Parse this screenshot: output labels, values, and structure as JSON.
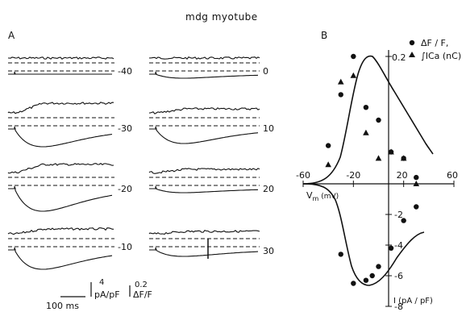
{
  "title": "mdg  myotube",
  "panel_a": {
    "label": "A",
    "rows": [
      {
        "left_voltage": "-40",
        "right_voltage": "0"
      },
      {
        "left_voltage": "-30",
        "right_voltage": "10"
      },
      {
        "left_voltage": "-20",
        "right_voltage": "20"
      },
      {
        "left_voltage": "-10",
        "right_voltage": "30"
      }
    ],
    "scale_bar": {
      "time_label": "100  ms",
      "current_value": "4",
      "current_unit": "pA/pF",
      "fluor_value": "0.2",
      "fluor_unit": "ΔF/F"
    }
  },
  "panel_b": {
    "label": "B",
    "legend": [
      {
        "marker": "circle",
        "label": "ΔF / F,"
      },
      {
        "marker": "triangle",
        "label": "∫ICa (nC)"
      }
    ],
    "x_axis_label": "V",
    "x_axis_sub": "m",
    "x_axis_unit": " (mV)",
    "y_axis_label_bottom": "I (pA / pF)",
    "y_top_tick_label": "0.2"
  },
  "chart_data": {
    "type": "scatter",
    "xlabel": "Vm (mV)",
    "ylabel": "I (pA / pF)",
    "xlim": [
      -60,
      60
    ],
    "ylim": [
      -8,
      0
    ],
    "x_ticks": [
      -60,
      -20,
      20,
      60
    ],
    "y_ticks": [
      -8,
      -6,
      -4,
      -2
    ],
    "upper_axis_tick": 0.2,
    "series": [
      {
        "name": "ΔF / F,",
        "marker": "circle",
        "x": [
          -40,
          -30,
          -20,
          -10,
          0,
          10,
          20,
          30
        ],
        "y": [
          0.06,
          0.14,
          0.2,
          0.12,
          0.1,
          0.05,
          0.04,
          0.01
        ]
      },
      {
        "name": "∫ICa (nC)",
        "marker": "triangle",
        "x": [
          -40,
          -30,
          -20,
          -10,
          0,
          10,
          20,
          30
        ],
        "y": [
          0.03,
          0.16,
          0.17,
          0.08,
          0.04,
          0.05,
          0.04,
          0.0
        ]
      },
      {
        "name": "I",
        "marker": "circle",
        "x": [
          -30,
          -20,
          -10,
          -5,
          0,
          10,
          20,
          30
        ],
        "y": [
          -4.6,
          -6.5,
          -6.3,
          -6.0,
          -5.4,
          -4.2,
          -2.4,
          -1.5
        ]
      }
    ]
  }
}
